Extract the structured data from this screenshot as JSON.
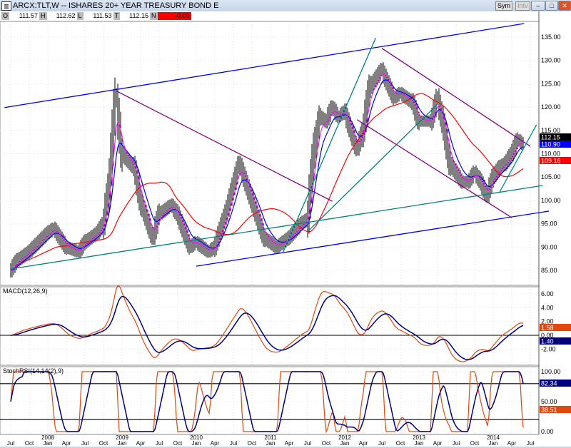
{
  "window": {
    "title": "ARCX:TLT,W -- ISHARES 20+ YEAR TREASURY BOND E",
    "sym_button": "Sym",
    "intv_button": "Intv",
    "minimize": "–",
    "restore": "□",
    "close": "✕"
  },
  "info": {
    "o_label": "O",
    "o": "111.57",
    "h_label": "H",
    "h": "112.62",
    "l_label": "L",
    "l": "111.53",
    "t_label": "T",
    "t": "112.15",
    "n_label": "N",
    "n": "-0.06",
    "n_color": "#ff0000"
  },
  "chart_data": [
    {
      "type": "line",
      "panel": "price",
      "title": "",
      "ylim": [
        82,
        139
      ],
      "yticks": [
        "135.00",
        "130.00",
        "125.00",
        "120.00",
        "115.00",
        "110.00",
        "105.00",
        "100.00",
        "95.00",
        "90.00",
        "85.00"
      ],
      "readouts": [
        {
          "value": "112.15",
          "color": "#000000"
        },
        {
          "value": "110.90",
          "color": "#0000ff"
        },
        {
          "value": "109.16",
          "color": "#ff0000"
        }
      ],
      "close_monthly": [
        [
          "2007-07",
          85
        ],
        [
          "2007-08",
          87
        ],
        [
          "2007-10",
          89
        ],
        [
          "2008-01",
          93
        ],
        [
          "2008-02",
          94
        ],
        [
          "2008-04",
          90
        ],
        [
          "2008-06",
          89
        ],
        [
          "2008-07",
          91
        ],
        [
          "2008-09",
          93
        ],
        [
          "2008-10",
          95
        ],
        [
          "2008-11",
          104
        ],
        [
          "2008-12",
          123
        ],
        [
          "2009-01",
          110
        ],
        [
          "2009-03",
          107
        ],
        [
          "2009-04",
          100
        ],
        [
          "2009-06",
          92
        ],
        [
          "2009-07",
          97
        ],
        [
          "2009-09",
          99
        ],
        [
          "2009-10",
          97
        ],
        [
          "2009-12",
          90
        ],
        [
          "2010-01",
          91
        ],
        [
          "2010-03",
          89
        ],
        [
          "2010-04",
          90
        ],
        [
          "2010-06",
          98
        ],
        [
          "2010-08",
          108
        ],
        [
          "2010-09",
          104
        ],
        [
          "2010-10",
          100
        ],
        [
          "2010-12",
          92
        ],
        [
          "2011-01",
          91
        ],
        [
          "2011-02",
          90
        ],
        [
          "2011-04",
          92
        ],
        [
          "2011-06",
          95
        ],
        [
          "2011-07",
          96
        ],
        [
          "2011-08",
          110
        ],
        [
          "2011-09",
          118
        ],
        [
          "2011-10",
          117
        ],
        [
          "2011-11",
          120
        ],
        [
          "2011-12",
          118
        ],
        [
          "2012-01",
          119
        ],
        [
          "2012-03",
          111
        ],
        [
          "2012-04",
          115
        ],
        [
          "2012-05",
          124
        ],
        [
          "2012-07",
          128
        ],
        [
          "2012-08",
          125
        ],
        [
          "2012-09",
          122
        ],
        [
          "2012-10",
          123
        ],
        [
          "2012-12",
          121
        ],
        [
          "2013-01",
          117
        ],
        [
          "2013-03",
          117
        ],
        [
          "2013-04",
          122
        ],
        [
          "2013-05",
          116
        ],
        [
          "2013-06",
          108
        ],
        [
          "2013-07",
          106
        ],
        [
          "2013-08",
          104
        ],
        [
          "2013-09",
          104
        ],
        [
          "2013-10",
          106
        ],
        [
          "2013-11",
          104
        ],
        [
          "2013-12",
          101
        ],
        [
          "2014-01",
          105
        ],
        [
          "2014-02",
          107
        ],
        [
          "2014-03",
          108
        ],
        [
          "2014-04",
          110
        ],
        [
          "2014-05",
          113
        ],
        [
          "2014-06",
          112
        ]
      ],
      "trendlines": [
        {
          "color": "#0000ff",
          "from": [
            "2007-06",
            119.9
          ],
          "to": [
            "2014-06",
            137.9
          ]
        },
        {
          "color": "#0000ff",
          "from": [
            "2010-01",
            85.9
          ],
          "to": [
            "2014-10",
            97.7
          ]
        },
        {
          "color": "#008080",
          "from": [
            "2007-07",
            85.3
          ],
          "to": [
            "2014-09",
            103.2
          ]
        },
        {
          "color": "#800080",
          "from": [
            "2008-12",
            123.5
          ],
          "to": [
            "2011-11",
            99.8
          ]
        },
        {
          "color": "#008080",
          "from": [
            "2011-03",
            88.8
          ],
          "to": [
            "2012-06",
            134.8
          ]
        },
        {
          "color": "#008080",
          "from": [
            "2011-07",
            93.3
          ],
          "to": [
            "2013-04",
            120.6
          ]
        },
        {
          "color": "#800080",
          "from": [
            "2012-07",
            132.6
          ],
          "to": [
            "2014-07",
            111.6
          ]
        },
        {
          "color": "#800080",
          "from": [
            "2012-03",
            117.3
          ],
          "to": [
            "2014-04",
            96.3
          ]
        },
        {
          "color": "#008b8b",
          "from": [
            "2014-02",
            101.7
          ],
          "to": [
            "2014-08",
            116.2
          ]
        }
      ]
    },
    {
      "type": "line",
      "panel": "macd",
      "title": "MACD(12,26,9)",
      "ylim": [
        -4,
        7
      ],
      "yticks": [
        "6.00",
        "4.00",
        "2.00",
        "0.00",
        "-2.00"
      ],
      "readouts": [
        {
          "value": "1.58",
          "color": "#e04810"
        },
        {
          "value": "1.40",
          "color": "#000080"
        }
      ]
    },
    {
      "type": "line",
      "panel": "stochrsi",
      "title": "StochRSI(14,14(2),9)",
      "ylim": [
        0,
        100
      ],
      "yticks": [
        "100.00",
        "50.00",
        "0.00"
      ],
      "hlines": [
        80,
        20
      ],
      "readouts": [
        {
          "value": "82.34",
          "color": "#000080"
        },
        {
          "value": "38.51",
          "color": "#e04810"
        }
      ]
    }
  ],
  "xaxis": {
    "ticks": [
      [
        "2007-07",
        "Jul",
        ""
      ],
      [
        "2007-10",
        "Oct",
        ""
      ],
      [
        "2008-01",
        "Jan",
        "2008"
      ],
      [
        "2008-04",
        "Apr",
        ""
      ],
      [
        "2008-07",
        "Jul",
        ""
      ],
      [
        "2008-10",
        "Oct",
        ""
      ],
      [
        "2009-01",
        "Jan",
        "2009"
      ],
      [
        "2009-04",
        "Apr",
        ""
      ],
      [
        "2009-07",
        "Jul",
        ""
      ],
      [
        "2009-10",
        "Oct",
        ""
      ],
      [
        "2010-01",
        "Jan",
        "2010"
      ],
      [
        "2010-04",
        "Apr",
        ""
      ],
      [
        "2010-07",
        "Jul",
        ""
      ],
      [
        "2010-10",
        "Oct",
        ""
      ],
      [
        "2011-01",
        "Jan",
        "2011"
      ],
      [
        "2011-04",
        "Apr",
        ""
      ],
      [
        "2011-07",
        "Jul",
        ""
      ],
      [
        "2011-10",
        "Oct",
        ""
      ],
      [
        "2012-01",
        "Jan",
        "2012"
      ],
      [
        "2012-04",
        "Apr",
        ""
      ],
      [
        "2012-07",
        "Jul",
        ""
      ],
      [
        "2012-10",
        "Oct",
        ""
      ],
      [
        "2013-01",
        "Jan",
        "2013"
      ],
      [
        "2013-04",
        "Apr",
        ""
      ],
      [
        "2013-07",
        "Jul",
        ""
      ],
      [
        "2013-10",
        "Oct",
        ""
      ],
      [
        "2014-01",
        "Jan",
        "2014"
      ],
      [
        "2014-04",
        "Apr",
        ""
      ],
      [
        "2014-07",
        "Jul",
        ""
      ]
    ]
  },
  "colors": {
    "price": "#000000",
    "ema_fast": "#ff00ff",
    "ema_slow": "#0000ff",
    "ma_long": "#ff0000",
    "macd": "#e04810",
    "signal": "#000080"
  }
}
